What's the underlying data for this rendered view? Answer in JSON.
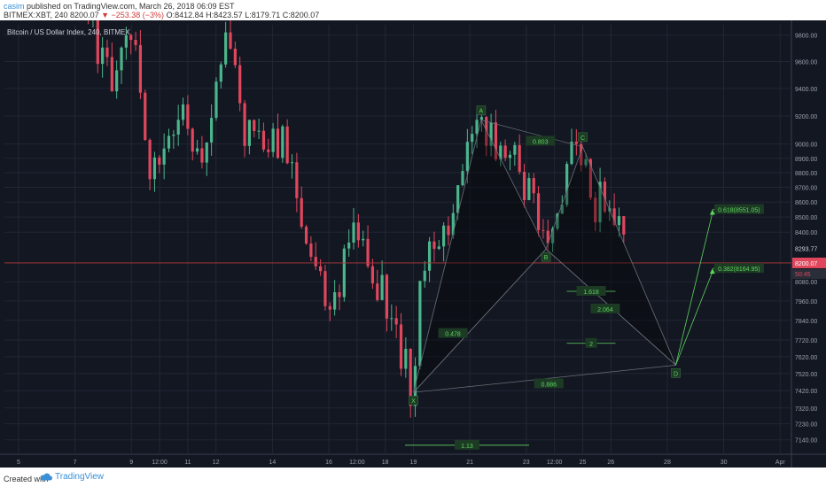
{
  "header": {
    "author": "casim",
    "published": "published on TradingView.com, March 26, 2018 06:09 EST",
    "symbol": "BITMEX:XBT, 240",
    "price": "8200.07",
    "change": "▼ −253.38 (−3%)",
    "open": "O:8412.84",
    "high": "H:8423.57",
    "low": "L:8179.71",
    "close": "C:8200.07"
  },
  "footer": {
    "created": "Created with",
    "brand": "TradingView"
  },
  "colors": {
    "background": "#131722",
    "up": "#4bb58b",
    "down": "#e0475d",
    "harmonic": "#5ed45e",
    "price_line": "#b33a3a",
    "price_tag": "#e0475d"
  },
  "chart_data": {
    "type": "candlestick",
    "title": "Bitcoin / US Dollar Index, 240, BITMEX",
    "ylim": [
      7060,
      9880
    ],
    "y_scale": "log",
    "yticks": [
      9800,
      9600,
      9400,
      9200,
      9000,
      8900,
      8800,
      8700,
      8600,
      8500,
      8400,
      8080,
      7960,
      7840,
      7720,
      7620,
      7520,
      7420,
      7320,
      7230,
      7140
    ],
    "y_tick_labels": [
      "9800.00",
      "9600.00",
      "9400.00",
      "9200.00",
      "9000.00",
      "8900.00",
      "8800.00",
      "8700.00",
      "8600.00",
      "8500.00",
      "8400.00",
      "8080.00",
      "7960.00",
      "7840.00",
      "7720.00",
      "7620.00",
      "7520.00",
      "7420.00",
      "7320.00",
      "7230.00",
      "7140.00"
    ],
    "xlim": [
      4.5,
      32.4
    ],
    "xticks": [
      5,
      7,
      9,
      10,
      11,
      12,
      14,
      16,
      17,
      18,
      19,
      21,
      23,
      24,
      25,
      26,
      28,
      30,
      32
    ],
    "x_tick_labels": [
      "5",
      "7",
      "9",
      "12:00",
      "11",
      "12",
      "14",
      "16",
      "12:00",
      "18",
      "19",
      "21",
      "23",
      "12:00",
      "25",
      "26",
      "28",
      "30",
      "Apr"
    ],
    "current_price": 8200.07,
    "current_price_label": "8200.07",
    "countdown_label": "50:45",
    "reference_price": 8293.77,
    "reference_price_label": "8293.77",
    "ohlc_path": [
      [
        6.8,
        10400
      ],
      [
        8.3,
        9400
      ],
      [
        8.9,
        9990
      ],
      [
        9.6,
        8820
      ],
      [
        10.9,
        9250
      ],
      [
        11.4,
        8760
      ],
      [
        12.3,
        9900
      ],
      [
        13.0,
        9120
      ],
      [
        13.9,
        8990
      ],
      [
        14.4,
        9100
      ],
      [
        15.0,
        8350
      ],
      [
        15.5,
        8250
      ],
      [
        15.9,
        8000
      ],
      [
        16.5,
        8140
      ],
      [
        16.9,
        8580
      ],
      [
        17.3,
        8150
      ],
      [
        17.8,
        8040
      ],
      [
        18.4,
        7700
      ],
      [
        19.0,
        7410
      ],
      [
        19.2,
        8200
      ],
      [
        19.8,
        8420
      ],
      [
        20.6,
        8600
      ],
      [
        21.0,
        8950
      ],
      [
        21.4,
        9120
      ],
      [
        22.0,
        8980
      ],
      [
        22.5,
        9020
      ],
      [
        23.0,
        8700
      ],
      [
        23.5,
        8450
      ],
      [
        23.7,
        8290
      ],
      [
        24.5,
        8900
      ],
      [
        25.0,
        8880
      ],
      [
        25.4,
        8580
      ],
      [
        25.9,
        8630
      ],
      [
        26.3,
        8450
      ],
      [
        26.6,
        8260
      ]
    ],
    "harmonic_pattern": {
      "points": [
        {
          "label": "X",
          "x": 19.0,
          "y": 7410
        },
        {
          "label": "A",
          "x": 21.4,
          "y": 9170
        },
        {
          "label": "B",
          "x": 23.7,
          "y": 8290
        },
        {
          "label": "C",
          "x": 25.0,
          "y": 8980
        },
        {
          "label": "D",
          "x": 28.3,
          "y": 7570
        }
      ],
      "ratios": [
        {
          "label": "0.803",
          "x": 23.5,
          "y": 9020
        },
        {
          "label": "0.478",
          "x": 20.4,
          "y": 7760
        },
        {
          "label": "0.886",
          "x": 23.8,
          "y": 7460
        },
        {
          "label": "1.618",
          "x": 25.3,
          "y": 8020
        },
        {
          "label": "2.064",
          "x": 25.8,
          "y": 7910
        },
        {
          "label": "2",
          "x": 25.3,
          "y": 7700
        },
        {
          "label": "1.13",
          "x": 20.9,
          "y": 7110
        }
      ],
      "targets": [
        {
          "label": "0.618(8551.05)",
          "value": 8551.05,
          "x": 29.6
        },
        {
          "label": "0.382(8164.95)",
          "value": 8164.95,
          "x": 29.6
        }
      ]
    }
  }
}
